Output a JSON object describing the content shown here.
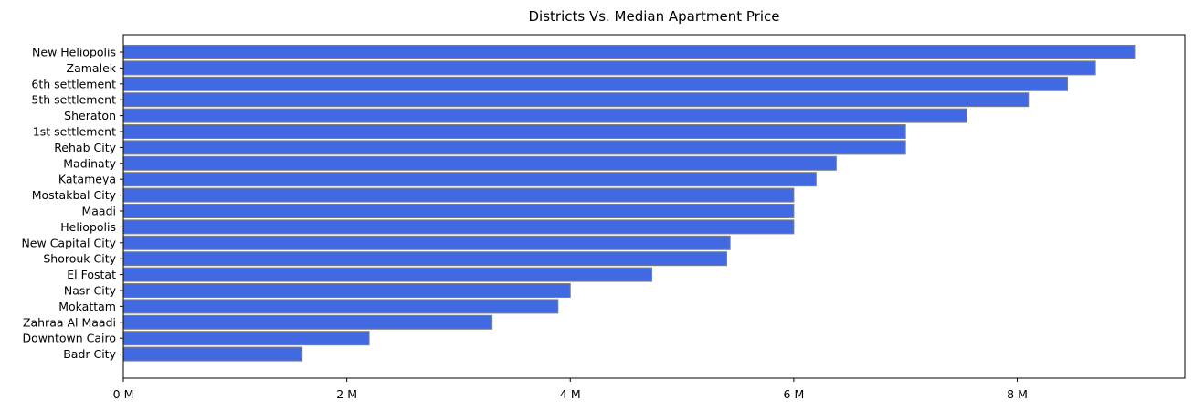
{
  "chart_data": {
    "type": "bar",
    "orientation": "horizontal",
    "title": "Districts Vs. Median Apartment Price",
    "xlabel": "",
    "ylabel": "",
    "xlim": [
      0,
      9500000
    ],
    "grid": false,
    "legend": "none",
    "bar_color": "#4169e1",
    "bar_edge_color": "#808080",
    "x_ticks": [
      {
        "value": 0,
        "label": "0 M"
      },
      {
        "value": 2000000,
        "label": "2 M"
      },
      {
        "value": 4000000,
        "label": "4 M"
      },
      {
        "value": 6000000,
        "label": "6 M"
      },
      {
        "value": 8000000,
        "label": "8 M"
      }
    ],
    "categories": [
      "New Heliopolis",
      "Zamalek",
      "6th settlement",
      "5th settlement",
      "Sheraton",
      "1st settlement",
      "Rehab City",
      "Madinaty",
      "Katameya",
      "Mostakbal City",
      "Maadi",
      "Heliopolis",
      "New Capital City",
      "Shorouk City",
      "El Fostat",
      "Nasr City",
      "Mokattam",
      "Zahraa Al Maadi",
      "Downtown Cairo",
      "Badr City"
    ],
    "values": [
      9050000,
      8700000,
      8450000,
      8100000,
      7550000,
      7000000,
      7000000,
      6380000,
      6200000,
      6000000,
      6000000,
      6000000,
      5430000,
      5400000,
      4730000,
      4000000,
      3890000,
      3300000,
      2200000,
      1600000
    ]
  }
}
